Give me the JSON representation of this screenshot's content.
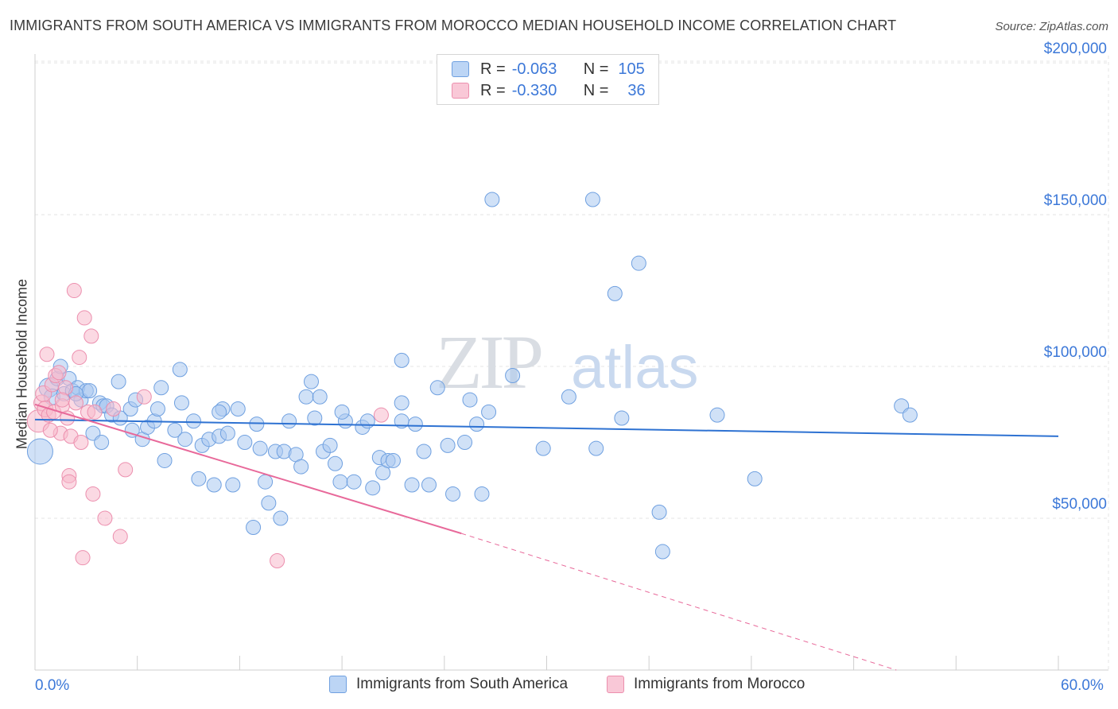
{
  "title": "IMMIGRANTS FROM SOUTH AMERICA VS IMMIGRANTS FROM MOROCCO MEDIAN HOUSEHOLD INCOME CORRELATION CHART",
  "source": "Source: ZipAtlas.com",
  "watermark": {
    "zip": "ZIP",
    "atlas": "atlas"
  },
  "colors": {
    "blue_fill": "#a9c8f0",
    "blue_stroke": "#6fa0e0",
    "blue_line": "#2e72d2",
    "pink_fill": "#f7b9cc",
    "pink_stroke": "#ec8fae",
    "pink_line": "#e8699a",
    "axis_text": "#3c78d8",
    "grid": "#e4e4e4"
  },
  "legend": {
    "r_label": "R =",
    "n_label": "N =",
    "rows": [
      {
        "r": "-0.063",
        "n": "105"
      },
      {
        "r": "-0.330",
        "n": "36"
      }
    ]
  },
  "chart_data": {
    "type": "scatter",
    "title": "IMMIGRANTS FROM SOUTH AMERICA VS IMMIGRANTS FROM MOROCCO MEDIAN HOUSEHOLD INCOME CORRELATION CHART",
    "xlabel": "",
    "ylabel": "Median Household Income",
    "xlim": [
      0,
      60
    ],
    "ylim": [
      0,
      205000
    ],
    "x_tick_labels": [
      "0.0%",
      "60.0%"
    ],
    "y_ticks": [
      50000,
      100000,
      150000,
      200000
    ],
    "y_tick_labels": [
      "$50,000",
      "$100,000",
      "$150,000",
      "$200,000"
    ],
    "grid": true,
    "legend_position": "top-center and bottom",
    "series": [
      {
        "name": "Immigrants from South America",
        "color": "#a9c8f0",
        "r": -0.063,
        "n": 105,
        "trend": {
          "x": [
            0,
            60
          ],
          "y": [
            82500,
            77000
          ]
        },
        "points": [
          [
            0.3,
            72000,
            16
          ],
          [
            0.8,
            93000,
            12
          ],
          [
            1.0,
            90000,
            10
          ],
          [
            1.3,
            96000,
            9
          ],
          [
            1.5,
            100000,
            9
          ],
          [
            1.7,
            91000,
            9
          ],
          [
            2.0,
            96000,
            9
          ],
          [
            2.2,
            92000,
            9
          ],
          [
            2.5,
            93000,
            9
          ],
          [
            2.7,
            89000,
            9
          ],
          [
            3.0,
            92000,
            9
          ],
          [
            3.2,
            92000,
            9
          ],
          [
            3.4,
            78000,
            9
          ],
          [
            3.8,
            88000,
            9
          ],
          [
            3.9,
            75000,
            9
          ],
          [
            4.0,
            87000,
            9
          ],
          [
            4.2,
            87000,
            9
          ],
          [
            4.5,
            84000,
            9
          ],
          [
            4.9,
            95000,
            9
          ],
          [
            5.0,
            83000,
            9
          ],
          [
            5.6,
            86000,
            9
          ],
          [
            5.7,
            79000,
            9
          ],
          [
            5.9,
            89000,
            9
          ],
          [
            6.3,
            76000,
            9
          ],
          [
            6.6,
            80000,
            9
          ],
          [
            7.0,
            82000,
            9
          ],
          [
            7.4,
            93000,
            9
          ],
          [
            7.6,
            69000,
            9
          ],
          [
            8.2,
            79000,
            9
          ],
          [
            8.5,
            99000,
            9
          ],
          [
            8.6,
            88000,
            9
          ],
          [
            8.8,
            76000,
            9
          ],
          [
            9.3,
            82000,
            9
          ],
          [
            9.6,
            63000,
            9
          ],
          [
            9.8,
            74000,
            9
          ],
          [
            10.2,
            76000,
            9
          ],
          [
            10.5,
            61000,
            9
          ],
          [
            10.8,
            77000,
            9
          ],
          [
            11.0,
            86000,
            9
          ],
          [
            11.3,
            78000,
            9
          ],
          [
            11.6,
            61000,
            9
          ],
          [
            11.9,
            86000,
            9
          ],
          [
            12.3,
            75000,
            9
          ],
          [
            12.8,
            47000,
            9
          ],
          [
            13.0,
            81000,
            9
          ],
          [
            13.2,
            73000,
            9
          ],
          [
            13.5,
            62000,
            9
          ],
          [
            13.7,
            55000,
            9
          ],
          [
            14.1,
            72000,
            9
          ],
          [
            14.4,
            50000,
            9
          ],
          [
            14.6,
            72000,
            9
          ],
          [
            14.9,
            82000,
            9
          ],
          [
            15.3,
            71000,
            9
          ],
          [
            15.6,
            67000,
            9
          ],
          [
            15.9,
            90000,
            9
          ],
          [
            16.2,
            95000,
            9
          ],
          [
            16.4,
            83000,
            9
          ],
          [
            16.7,
            90000,
            9
          ],
          [
            16.9,
            72000,
            9
          ],
          [
            17.3,
            74000,
            9
          ],
          [
            17.6,
            68000,
            9
          ],
          [
            17.9,
            62000,
            9
          ],
          [
            18.2,
            82000,
            9
          ],
          [
            18.7,
            62000,
            9
          ],
          [
            19.2,
            80000,
            9
          ],
          [
            19.5,
            82000,
            9
          ],
          [
            19.8,
            60000,
            9
          ],
          [
            20.2,
            70000,
            9
          ],
          [
            20.4,
            65000,
            9
          ],
          [
            20.7,
            69000,
            9
          ],
          [
            21.0,
            69000,
            9
          ],
          [
            21.5,
            82000,
            9
          ],
          [
            22.1,
            61000,
            9
          ],
          [
            22.3,
            81000,
            9
          ],
          [
            22.8,
            72000,
            9
          ],
          [
            23.1,
            61000,
            9
          ],
          [
            23.6,
            93000,
            9
          ],
          [
            24.2,
            74000,
            9
          ],
          [
            24.5,
            58000,
            9
          ],
          [
            25.2,
            75000,
            9
          ],
          [
            25.5,
            89000,
            9
          ],
          [
            25.9,
            81000,
            9
          ],
          [
            26.2,
            58000,
            9
          ],
          [
            26.6,
            85000,
            9
          ],
          [
            28.0,
            97000,
            9
          ],
          [
            21.5,
            88000,
            9
          ],
          [
            29.8,
            73000,
            9
          ],
          [
            31.3,
            90000,
            9
          ],
          [
            32.9,
            73000,
            9
          ],
          [
            34.4,
            83000,
            9
          ],
          [
            36.6,
            52000,
            9
          ],
          [
            36.8,
            39000,
            9
          ],
          [
            40.0,
            84000,
            9
          ],
          [
            42.2,
            63000,
            9
          ],
          [
            50.8,
            87000,
            9
          ],
          [
            51.3,
            84000,
            9
          ],
          [
            21.5,
            102000,
            9
          ],
          [
            26.8,
            155000,
            9
          ],
          [
            32.7,
            155000,
            9
          ],
          [
            35.4,
            134000,
            9
          ],
          [
            34.0,
            124000,
            9
          ],
          [
            10.8,
            85000,
            9
          ],
          [
            18.0,
            85000,
            9
          ],
          [
            7.2,
            86000,
            9
          ],
          [
            2.4,
            91000,
            9
          ]
        ]
      },
      {
        "name": "Immigrants from Morocco",
        "color": "#f7b9cc",
        "r": -0.33,
        "n": 36,
        "trend": {
          "x": [
            0,
            25.0,
            50.5
          ],
          "y": [
            87500,
            45000,
            0
          ]
        },
        "points": [
          [
            0.2,
            82000,
            14
          ],
          [
            0.4,
            88000,
            10
          ],
          [
            0.5,
            91000,
            10
          ],
          [
            0.6,
            86000,
            10
          ],
          [
            0.7,
            104000,
            9
          ],
          [
            0.8,
            84000,
            9
          ],
          [
            1.0,
            94000,
            9
          ],
          [
            1.1,
            85000,
            9
          ],
          [
            1.2,
            97000,
            9
          ],
          [
            1.4,
            98000,
            9
          ],
          [
            1.5,
            78000,
            9
          ],
          [
            1.6,
            87000,
            9
          ],
          [
            1.8,
            93000,
            9
          ],
          [
            1.9,
            83000,
            9
          ],
          [
            2.0,
            64000,
            9
          ],
          [
            2.0,
            62000,
            9
          ],
          [
            2.1,
            77000,
            9
          ],
          [
            2.3,
            125000,
            9
          ],
          [
            2.4,
            88000,
            9
          ],
          [
            2.6,
            103000,
            9
          ],
          [
            2.7,
            75000,
            9
          ],
          [
            2.8,
            37000,
            9
          ],
          [
            2.9,
            116000,
            9
          ],
          [
            3.1,
            85000,
            9
          ],
          [
            3.3,
            110000,
            9
          ],
          [
            3.5,
            85000,
            9
          ],
          [
            3.4,
            58000,
            9
          ],
          [
            4.1,
            50000,
            9
          ],
          [
            4.6,
            86000,
            9
          ],
          [
            5.0,
            44000,
            9
          ],
          [
            5.3,
            66000,
            9
          ],
          [
            6.4,
            90000,
            9
          ],
          [
            14.2,
            36000,
            9
          ],
          [
            20.3,
            84000,
            9
          ],
          [
            1.6,
            89000,
            9
          ],
          [
            0.9,
            79000,
            9
          ]
        ]
      }
    ]
  },
  "bottom_legend": [
    {
      "label": "Immigrants from South America"
    },
    {
      "label": "Immigrants from Morocco"
    }
  ]
}
